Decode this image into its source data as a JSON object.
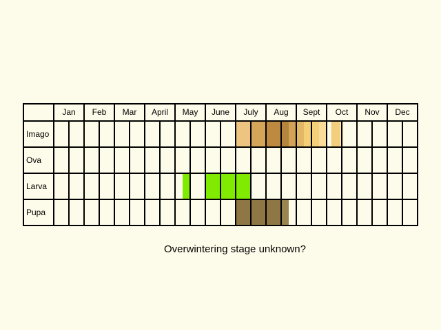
{
  "chart_data": {
    "type": "table",
    "months": [
      "Jan",
      "Feb",
      "Mar",
      "April",
      "May",
      "June",
      "July",
      "Aug",
      "Sept",
      "Oct",
      "Nov",
      "Dec"
    ],
    "subdivisions_per_month": 2,
    "stages": [
      {
        "name": "Imago",
        "periods": [
          {
            "start": 6.0,
            "end": 6.5,
            "color": "#eec580"
          },
          {
            "start": 6.5,
            "end": 7.0,
            "color": "#d5a55a"
          },
          {
            "start": 7.0,
            "end": 7.5,
            "color": "#bd8a40"
          },
          {
            "start": 7.5,
            "end": 7.75,
            "color": "#b5853e"
          },
          {
            "start": 7.75,
            "end": 8.0,
            "color": "#d2a258"
          },
          {
            "start": 8.0,
            "end": 8.25,
            "color": "#e2b766"
          },
          {
            "start": 8.25,
            "end": 8.5,
            "color": "#f3cf76"
          },
          {
            "start": 8.5,
            "end": 8.75,
            "color": "#f4d078"
          },
          {
            "start": 8.75,
            "end": 9.0,
            "color": "#f9dc9a"
          },
          {
            "start": 9.15,
            "end": 9.45,
            "color": "#f3cf7d"
          },
          {
            "start": 9.45,
            "end": 9.55,
            "color": "#fbebbe"
          }
        ]
      },
      {
        "name": "Ova",
        "periods": []
      },
      {
        "name": "Larva",
        "periods": [
          {
            "start": 4.25,
            "end": 4.5,
            "color": "#80ea00"
          },
          {
            "start": 5.0,
            "end": 6.5,
            "color": "#80ea00"
          }
        ]
      },
      {
        "name": "Pupa",
        "periods": [
          {
            "start": 6.0,
            "end": 7.5,
            "color": "#8e7745"
          },
          {
            "start": 7.5,
            "end": 7.75,
            "color": "#9a8550"
          }
        ]
      }
    ]
  },
  "caption": "Overwintering stage unknown?"
}
